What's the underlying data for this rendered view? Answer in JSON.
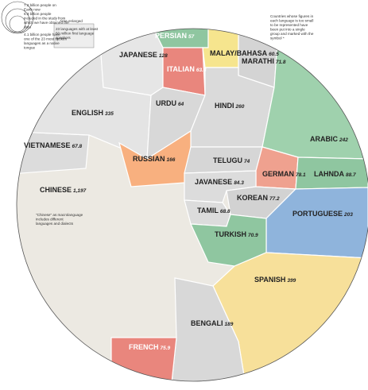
{
  "legend": {
    "earth": "7.2 billion people on Earth now",
    "study": "6.3 billion people included in the study from which we have obtained the data",
    "native": "4.1 billion people have one of the 23 most spoken languages as a native tongue",
    "enlarged": "Area enlarged",
    "languages": "23 languages with at least 50 million first language speakers",
    "grouped": "Countries whose figures in each language is too small to be represented have been put into a single group and marked with the symbol *"
  },
  "chinese_note": "\"Chinese\" as macrolanguage includes different languages and dialects",
  "languages": [
    {
      "name": "PERSIAN",
      "value": "57"
    },
    {
      "name": "MALAY/BAHASA",
      "value": "60.5"
    },
    {
      "name": "MARATHI",
      "value": "71.8"
    },
    {
      "name": "JAPANESE",
      "value": "128"
    },
    {
      "name": "ITALIAN",
      "value": "63.8"
    },
    {
      "name": "URDU",
      "value": "64"
    },
    {
      "name": "HINDI",
      "value": "260"
    },
    {
      "name": "ENGLISH",
      "value": "335"
    },
    {
      "name": "ARABIC",
      "value": "242"
    },
    {
      "name": "VIETNAMESE",
      "value": "67.8"
    },
    {
      "name": "RUSSIAN",
      "value": "166"
    },
    {
      "name": "TELUGU",
      "value": "74"
    },
    {
      "name": "GERMAN",
      "value": "78.1"
    },
    {
      "name": "LAHNDA",
      "value": "88.7"
    },
    {
      "name": "JAVANESE",
      "value": "84.3"
    },
    {
      "name": "KOREAN",
      "value": "77.2"
    },
    {
      "name": "CHINESE",
      "value": "1,197"
    },
    {
      "name": "TAMIL",
      "value": "68.8"
    },
    {
      "name": "PORTUGUESE",
      "value": "203"
    },
    {
      "name": "TURKISH",
      "value": "70.9"
    },
    {
      "name": "SPANISH",
      "value": "399"
    },
    {
      "name": "BENGALI",
      "value": "189"
    },
    {
      "name": "FRENCH",
      "value": "75.9"
    }
  ]
}
